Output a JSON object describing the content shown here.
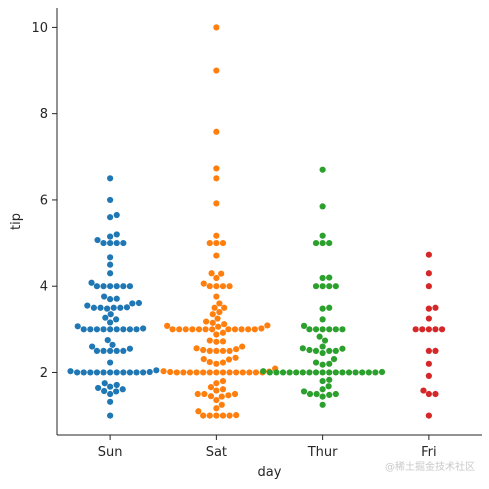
{
  "chart_data": {
    "type": "scatter",
    "style": "swarm",
    "xlabel": "day",
    "ylabel": "tip",
    "categories": [
      "Sun",
      "Sat",
      "Thur",
      "Fri"
    ],
    "colors": [
      "#1f77b4",
      "#ff7f0e",
      "#2ca02c",
      "#d62728"
    ],
    "ylim": [
      0.55,
      10.45
    ],
    "yticks": [
      2,
      4,
      6,
      8,
      10
    ],
    "grid": false,
    "legend": "none",
    "series": [
      {
        "values": [
          1.0,
          1.32,
          1.5,
          1.56,
          1.57,
          1.61,
          1.64,
          1.67,
          1.71,
          1.75,
          2.0,
          2.0,
          2.0,
          2.0,
          2.0,
          2.0,
          2.0,
          2.0,
          2.0,
          2.0,
          2.0,
          2.01,
          2.03,
          2.05,
          2.23,
          2.5,
          2.5,
          2.5,
          2.5,
          2.5,
          2.55,
          2.6,
          2.64,
          2.75,
          3.0,
          3.0,
          3.0,
          3.0,
          3.0,
          3.0,
          3.0,
          3.0,
          3.0,
          3.02,
          3.07,
          3.16,
          3.23,
          3.27,
          3.35,
          3.48,
          3.5,
          3.5,
          3.5,
          3.5,
          3.51,
          3.55,
          3.6,
          3.61,
          3.7,
          3.71,
          3.76,
          4.0,
          4.0,
          4.0,
          4.0,
          4.0,
          4.0,
          4.08,
          4.3,
          4.5,
          4.67,
          5.0,
          5.0,
          5.0,
          5.0,
          5.07,
          5.15,
          5.2,
          5.6,
          5.65,
          6.0,
          6.5
        ]
      },
      {
        "values": [
          1.0,
          1.0,
          1.0,
          1.0,
          1.0,
          1.01,
          1.1,
          1.17,
          1.25,
          1.36,
          1.44,
          1.45,
          1.47,
          1.5,
          1.5,
          1.5,
          1.58,
          1.61,
          1.66,
          1.75,
          1.8,
          2.0,
          2.0,
          2.0,
          2.0,
          2.0,
          2.0,
          2.0,
          2.0,
          2.0,
          2.0,
          2.0,
          2.0,
          2.0,
          2.0,
          2.01,
          2.02,
          2.03,
          2.09,
          2.2,
          2.23,
          2.24,
          2.3,
          2.31,
          2.34,
          2.5,
          2.5,
          2.5,
          2.5,
          2.52,
          2.54,
          2.56,
          2.6,
          2.71,
          2.72,
          2.74,
          2.88,
          2.92,
          3.0,
          3.0,
          3.0,
          3.0,
          3.0,
          3.0,
          3.0,
          3.0,
          3.0,
          3.0,
          3.0,
          3.0,
          3.02,
          3.06,
          3.08,
          3.09,
          3.12,
          3.15,
          3.18,
          3.25,
          3.35,
          3.4,
          3.5,
          3.5,
          3.6,
          3.76,
          4.0,
          4.0,
          4.0,
          4.0,
          4.06,
          4.19,
          4.29,
          4.3,
          4.71,
          5.0,
          5.0,
          5.0,
          5.17,
          5.92,
          6.5,
          6.73,
          7.58,
          9.0,
          10.0
        ]
      },
      {
        "values": [
          1.25,
          1.44,
          1.48,
          1.5,
          1.5,
          1.5,
          1.56,
          1.61,
          1.68,
          1.8,
          1.83,
          2.0,
          2.0,
          2.0,
          2.0,
          2.0,
          2.0,
          2.0,
          2.0,
          2.0,
          2.0,
          2.0,
          2.0,
          2.0,
          2.0,
          2.0,
          2.0,
          2.0,
          2.01,
          2.03,
          2.18,
          2.2,
          2.23,
          2.31,
          2.45,
          2.5,
          2.5,
          2.5,
          2.52,
          2.55,
          2.56,
          2.6,
          2.74,
          2.83,
          3.0,
          3.0,
          3.0,
          3.0,
          3.0,
          3.0,
          3.08,
          3.23,
          3.48,
          3.5,
          4.0,
          4.0,
          4.0,
          4.0,
          4.19,
          4.2,
          5.0,
          5.0,
          5.0,
          5.17,
          5.85,
          6.7
        ]
      },
      {
        "values": [
          1.0,
          1.5,
          1.5,
          1.58,
          1.92,
          2.2,
          2.5,
          2.5,
          3.0,
          3.0,
          3.0,
          3.0,
          3.0,
          3.25,
          3.48,
          3.5,
          4.0,
          4.3,
          4.73
        ]
      }
    ]
  }
}
